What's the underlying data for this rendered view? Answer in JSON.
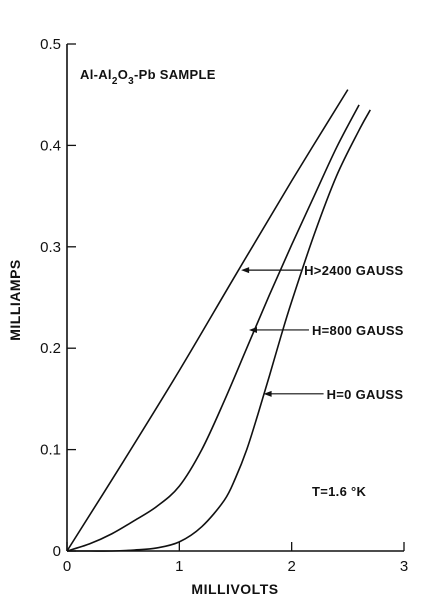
{
  "chart_data": {
    "type": "line",
    "title": "",
    "sample_label": {
      "prefix": "Al-Al",
      "sub1": "2",
      "mid": "O",
      "sub2": "3",
      "suffix": "-Pb SAMPLE"
    },
    "xlabel": "MILLIVOLTS",
    "ylabel": "MILLIAMPS",
    "xlim": [
      0,
      3
    ],
    "ylim": [
      0,
      0.5
    ],
    "x_ticks": [
      0,
      1,
      2,
      3
    ],
    "x_tick_labels": [
      "0",
      "1",
      "2",
      "3"
    ],
    "y_ticks": [
      0,
      0.1,
      0.2,
      0.3,
      0.4,
      0.5
    ],
    "y_tick_labels": [
      "0",
      "0.1",
      "0.2",
      "0.3",
      "0.4",
      "0.5"
    ],
    "annotation": "T=1.6 °K",
    "grid": false,
    "series": [
      {
        "name": "H>2400 GAUSS",
        "label_at": {
          "x": 1.55,
          "y": 0.277
        },
        "x": [
          0,
          0.5,
          1.0,
          1.5,
          2.0,
          2.5
        ],
        "y": [
          0,
          0.088,
          0.178,
          0.272,
          0.365,
          0.455
        ]
      },
      {
        "name": "H=800 GAUSS",
        "label_at": {
          "x": 1.62,
          "y": 0.218
        },
        "x": [
          0,
          0.2,
          0.4,
          0.6,
          0.8,
          1.0,
          1.2,
          1.4,
          1.6,
          1.8,
          2.0,
          2.2,
          2.4,
          2.6
        ],
        "y": [
          0,
          0.007,
          0.017,
          0.03,
          0.044,
          0.064,
          0.1,
          0.148,
          0.2,
          0.252,
          0.302,
          0.35,
          0.398,
          0.44
        ]
      },
      {
        "name": "H=0 GAUSS",
        "label_at": {
          "x": 1.75,
          "y": 0.155
        },
        "x": [
          0,
          0.2,
          0.4,
          0.6,
          0.8,
          1.0,
          1.2,
          1.4,
          1.5,
          1.6,
          1.7,
          1.8,
          1.9,
          2.0,
          2.2,
          2.4,
          2.6,
          2.7
        ],
        "y": [
          0,
          0.0,
          0.0,
          0.001,
          0.003,
          0.009,
          0.024,
          0.05,
          0.072,
          0.1,
          0.135,
          0.172,
          0.21,
          0.246,
          0.312,
          0.37,
          0.415,
          0.435
        ]
      }
    ]
  }
}
